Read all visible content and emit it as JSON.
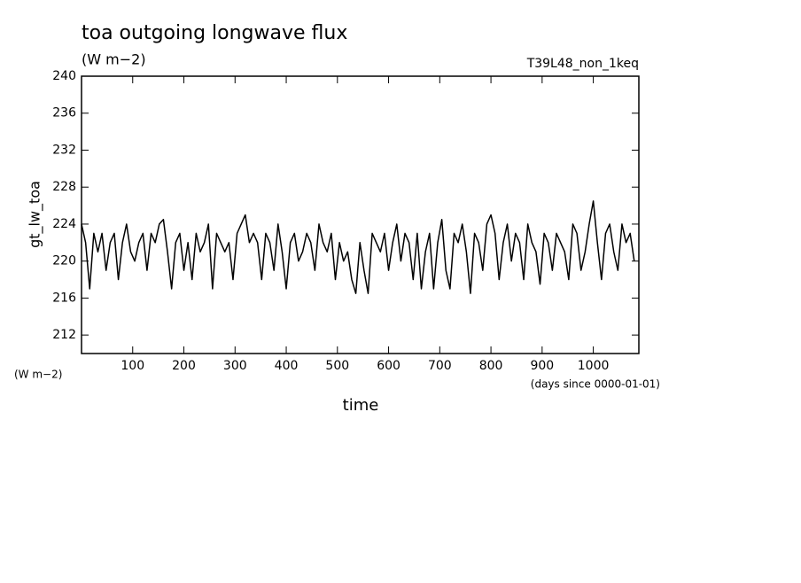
{
  "chart_data": {
    "type": "line",
    "title": "toa outgoing longwave flux",
    "units": "(W m−2)",
    "experiment": "T39L48_non_1keq",
    "ylabel": "gt_lw_toa",
    "y_units": "(W m−2)",
    "x_units": "(days since 0000-01-01)",
    "xlabel": "time",
    "color": "#000000",
    "xlim": [
      0,
      1089
    ],
    "ylim": [
      210,
      240
    ],
    "xticks": [
      100,
      200,
      300,
      400,
      500,
      600,
      700,
      800,
      900,
      1000
    ],
    "yticks": [
      212,
      216,
      220,
      224,
      228,
      232,
      236,
      240
    ],
    "x": [
      0,
      8,
      16,
      24,
      32,
      40,
      48,
      56,
      64,
      72,
      80,
      88,
      96,
      104,
      112,
      120,
      128,
      136,
      144,
      152,
      160,
      168,
      176,
      184,
      192,
      200,
      208,
      216,
      224,
      232,
      240,
      248,
      256,
      264,
      272,
      280,
      288,
      296,
      304,
      312,
      320,
      328,
      336,
      344,
      352,
      360,
      368,
      376,
      384,
      392,
      400,
      408,
      416,
      424,
      432,
      440,
      448,
      456,
      464,
      472,
      480,
      488,
      496,
      504,
      512,
      520,
      528,
      536,
      544,
      552,
      560,
      568,
      576,
      584,
      592,
      600,
      608,
      616,
      624,
      632,
      640,
      648,
      656,
      664,
      672,
      680,
      688,
      696,
      704,
      712,
      720,
      728,
      736,
      744,
      752,
      760,
      768,
      776,
      784,
      792,
      800,
      808,
      816,
      824,
      832,
      840,
      848,
      856,
      864,
      872,
      880,
      888,
      896,
      904,
      912,
      920,
      928,
      936,
      944,
      952,
      960,
      968,
      976,
      984,
      992,
      1000,
      1008,
      1016,
      1024,
      1032,
      1040,
      1048,
      1056,
      1064,
      1072,
      1080
    ],
    "values": [
      224,
      222,
      217,
      223,
      221,
      223,
      219,
      222,
      223,
      218,
      222,
      224,
      221,
      220,
      222,
      223,
      219,
      223,
      222,
      224,
      224.5,
      221,
      217,
      222,
      223,
      219,
      222,
      218,
      223,
      221,
      222,
      224,
      217,
      223,
      222,
      221,
      222,
      218,
      223,
      224,
      225,
      222,
      223,
      222,
      218,
      223,
      222,
      219,
      224,
      221,
      217,
      222,
      223,
      220,
      221,
      223,
      222,
      219,
      224,
      222,
      221,
      223,
      218,
      222,
      220,
      221,
      218,
      216.5,
      222,
      219,
      216.5,
      223,
      222,
      221,
      223,
      219,
      222,
      224,
      220,
      223,
      222,
      218,
      223,
      217,
      221,
      223,
      217,
      222,
      224.5,
      219,
      217,
      223,
      222,
      224,
      221,
      216.5,
      223,
      222,
      219,
      224,
      225,
      223,
      218,
      222,
      224,
      220,
      223,
      222,
      218,
      224,
      222,
      221,
      217.5,
      223,
      222,
      219,
      223,
      222,
      221,
      218,
      224,
      223,
      219,
      221,
      224,
      226.5,
      222,
      218,
      223,
      224,
      221,
      219,
      224,
      222,
      223,
      220
    ]
  }
}
